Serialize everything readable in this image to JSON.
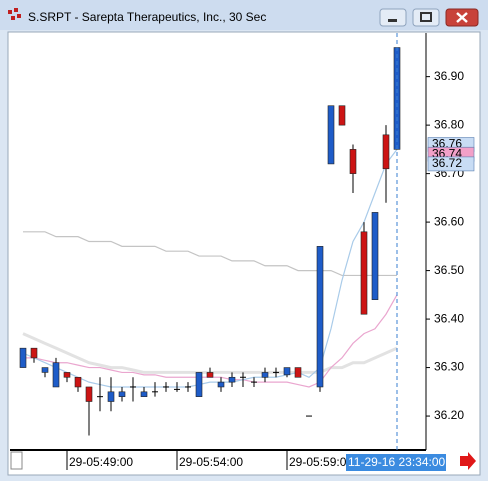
{
  "window": {
    "title": "S.SRPT - Sarepta Therapeutics, Inc., 30 Sec"
  },
  "chart_data": {
    "type": "candlestick",
    "up_color": "#1e5cc8",
    "down_color": "#cc1414",
    "open": [
      36.3,
      36.34,
      36.29,
      36.26,
      36.29,
      36.28,
      36.26,
      36.24,
      36.23,
      36.24,
      36.26,
      36.24,
      36.25,
      36.26,
      36.255,
      36.26,
      36.24,
      36.29,
      36.26,
      36.27,
      36.28,
      36.27,
      36.28,
      36.29,
      36.285,
      36.3,
      36.2,
      36.26,
      36.72,
      36.84,
      36.75,
      36.58,
      36.44,
      36.78,
      36.75
    ],
    "high": [
      36.34,
      36.34,
      36.3,
      36.32,
      36.29,
      36.28,
      36.26,
      36.28,
      36.28,
      36.26,
      36.28,
      36.26,
      36.27,
      36.27,
      36.27,
      36.27,
      36.29,
      36.3,
      36.28,
      36.29,
      36.29,
      36.28,
      36.3,
      36.3,
      36.3,
      36.3,
      36.2,
      36.55,
      36.84,
      36.84,
      36.76,
      36.6,
      36.62,
      36.8,
      36.96
    ],
    "low": [
      36.3,
      36.31,
      36.28,
      36.26,
      36.27,
      36.25,
      36.16,
      36.21,
      36.21,
      36.23,
      36.23,
      36.24,
      36.24,
      36.25,
      36.25,
      36.25,
      36.24,
      36.28,
      36.25,
      36.26,
      36.26,
      36.26,
      36.27,
      36.28,
      36.28,
      36.28,
      36.2,
      36.25,
      36.72,
      36.8,
      36.66,
      36.41,
      36.44,
      36.64,
      36.75
    ],
    "close": [
      36.34,
      36.32,
      36.3,
      36.31,
      36.28,
      36.26,
      36.23,
      36.24,
      36.25,
      36.25,
      36.26,
      36.25,
      36.25,
      36.26,
      36.255,
      36.26,
      36.29,
      36.28,
      36.27,
      36.28,
      36.28,
      36.27,
      36.29,
      36.29,
      36.3,
      36.28,
      36.2,
      36.55,
      36.84,
      36.8,
      36.7,
      36.41,
      36.62,
      36.71,
      36.96
    ],
    "overlays": [
      {
        "color": "#e2e2e2",
        "width": 3,
        "values": [
          36.37,
          36.36,
          36.35,
          36.34,
          36.33,
          36.32,
          36.31,
          36.305,
          36.3,
          36.3,
          36.295,
          36.29,
          36.29,
          36.29,
          36.29,
          36.29,
          36.29,
          36.29,
          36.29,
          36.29,
          36.29,
          36.29,
          36.29,
          36.29,
          36.29,
          36.29,
          36.29,
          36.29,
          36.3,
          36.3,
          36.31,
          36.31,
          36.32,
          36.33,
          36.34
        ]
      },
      {
        "color": "#c4c4c4",
        "width": 1.2,
        "values": [
          36.58,
          36.58,
          36.58,
          36.57,
          36.57,
          36.57,
          36.56,
          36.56,
          36.56,
          36.55,
          36.55,
          36.55,
          36.55,
          36.54,
          36.54,
          36.54,
          36.53,
          36.53,
          36.53,
          36.52,
          36.52,
          36.52,
          36.51,
          36.51,
          36.51,
          36.5,
          36.5,
          36.5,
          36.5,
          36.49,
          36.49,
          36.49,
          36.49,
          36.49,
          36.49
        ]
      },
      {
        "color": "#eaa6cf",
        "width": 1.2,
        "values": [
          36.32,
          36.32,
          36.315,
          36.31,
          36.31,
          36.305,
          36.3,
          36.3,
          36.295,
          36.29,
          36.29,
          36.285,
          36.285,
          36.28,
          36.28,
          36.28,
          36.28,
          36.28,
          36.28,
          36.275,
          36.275,
          36.27,
          36.27,
          36.27,
          36.27,
          36.265,
          36.26,
          36.27,
          36.3,
          36.32,
          36.35,
          36.37,
          36.38,
          36.41,
          36.45
        ]
      },
      {
        "color": "#a9cbe9",
        "width": 1.2,
        "values": [
          36.33,
          36.32,
          36.31,
          36.3,
          36.29,
          36.28,
          36.27,
          36.265,
          36.26,
          36.26,
          36.26,
          36.26,
          36.26,
          36.26,
          36.26,
          36.26,
          36.265,
          36.27,
          36.27,
          36.27,
          36.275,
          36.28,
          36.28,
          36.28,
          36.285,
          36.29,
          36.28,
          36.3,
          36.38,
          36.48,
          36.56,
          36.6,
          36.66,
          36.72,
          36.75
        ]
      }
    ],
    "ylim": [
      36.13,
      36.99
    ],
    "yticks": [
      {
        "value": 36.2,
        "label": "36.20"
      },
      {
        "value": 36.3,
        "label": "36.30"
      },
      {
        "value": 36.4,
        "label": "36.40"
      },
      {
        "value": 36.5,
        "label": "36.50"
      },
      {
        "value": 36.6,
        "label": "36.60"
      },
      {
        "value": 36.7,
        "label": "36.70"
      },
      {
        "value": 36.8,
        "label": "36.80"
      },
      {
        "value": 36.9,
        "label": "36.90"
      }
    ],
    "xticks": [
      {
        "value": 7,
        "label": "29-05:49:00"
      },
      {
        "value": 17,
        "label": "29-05:54:00"
      },
      {
        "value": 27,
        "label": "29-05:59:00"
      }
    ],
    "cursor": {
      "value": 34,
      "label": "11-29-16 23:34:00"
    },
    "price_markers": [
      {
        "value": 36.76,
        "color": "#c8dcf4"
      },
      {
        "value": 36.74,
        "color": "#f2a0c8"
      },
      {
        "value": 36.72,
        "color": "#c8dcf4"
      }
    ]
  }
}
